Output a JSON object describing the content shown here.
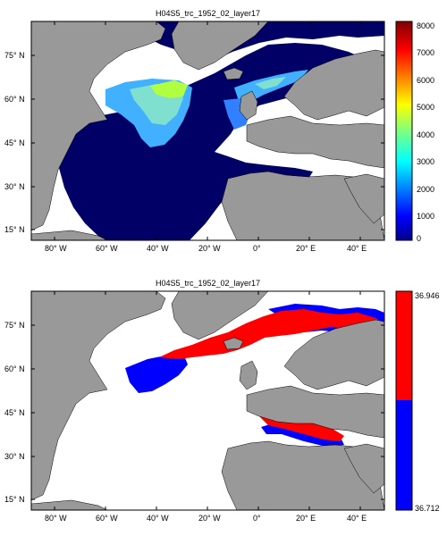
{
  "panels": [
    {
      "title": "H04S5_trc_1952_02_layer17",
      "lat_ticks": [
        "75° N",
        "60° N",
        "45° N",
        "30° N",
        "15° N"
      ],
      "lon_ticks": [
        "80° W",
        "60° W",
        "40° W",
        "20° W",
        "0°",
        "20° E",
        "40° E"
      ],
      "colorbar": {
        "ticks": [
          "8000",
          "7000",
          "6000",
          "5000",
          "4000",
          "3000",
          "2000",
          "1000",
          "0"
        ],
        "range": [
          0,
          8000
        ],
        "colormap": "jet"
      }
    },
    {
      "title": "H04S5_trc_1952_02_layer17",
      "lat_ticks": [
        "75° N",
        "60° N",
        "45° N",
        "30° N",
        "15° N"
      ],
      "lon_ticks": [
        "80° W",
        "60° W",
        "40° W",
        "20° W",
        "0°",
        "20° E",
        "40° E"
      ],
      "colorbar": {
        "ticks": [
          "36.946",
          "36.712"
        ],
        "colors": [
          "#ff0000",
          "#0000ff"
        ]
      }
    }
  ],
  "colors": {
    "land": "#999999",
    "ocean_field": "#000066",
    "high": "#ff0000",
    "low": "#0000ff",
    "frame": "#000000"
  }
}
